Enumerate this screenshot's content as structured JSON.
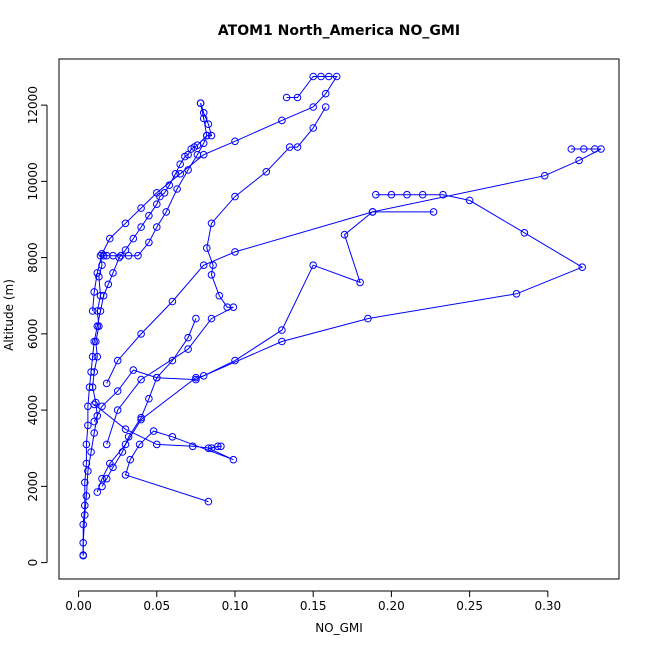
{
  "chart_data": {
    "type": "line",
    "title": "ATOM1 North_America NO_GMI",
    "xlabel": "NO_GMI",
    "ylabel": "Altitude (m)",
    "xlim": [
      -0.0125,
      0.3455
    ],
    "ylim": [
      -430,
      13210
    ],
    "x_ticks": [
      0.0,
      0.05,
      0.1,
      0.15,
      0.2,
      0.25,
      0.3
    ],
    "x_tick_labels": [
      "0.00",
      "0.05",
      "0.10",
      "0.15",
      "0.20",
      "0.25",
      "0.30"
    ],
    "y_ticks": [
      0,
      2000,
      4000,
      6000,
      8000,
      10000,
      12000
    ],
    "y_tick_labels": [
      "0",
      "2000",
      "4000",
      "6000",
      "8000",
      "10000",
      "12000"
    ],
    "grid": false,
    "color": "#0000ff",
    "marker": "open-circle",
    "series": [
      {
        "x": [
          0.003,
          0.003,
          0.004,
          0.005,
          0.006,
          0.008,
          0.01,
          0.012,
          0.011,
          0.009,
          0.01,
          0.012,
          0.011,
          0.013,
          0.012,
          0.014,
          0.013,
          0.015,
          0.014,
          0.016,
          0.018,
          0.022,
          0.027,
          0.032,
          0.038,
          0.045,
          0.05,
          0.056,
          0.063,
          0.07,
          0.076,
          0.08,
          0.082,
          0.085,
          0.083,
          0.08,
          0.078
        ],
        "y": [
          180,
          520,
          1250,
          1750,
          2400,
          2900,
          3400,
          3850,
          4200,
          4600,
          5000,
          5400,
          5800,
          6200,
          6600,
          7000,
          7500,
          7800,
          8050,
          8050,
          8050,
          8050,
          8050,
          8050,
          8050,
          8400,
          8800,
          9200,
          9800,
          10300,
          10700,
          11000,
          11200,
          11200,
          11500,
          11800,
          12050
        ]
      },
      {
        "x": [
          0.078,
          0.08,
          0.082,
          0.076,
          0.074,
          0.072,
          0.07,
          0.068,
          0.065,
          0.062,
          0.058,
          0.055,
          0.052,
          0.05,
          0.045,
          0.04,
          0.035,
          0.03,
          0.026,
          0.022,
          0.019,
          0.016,
          0.014,
          0.012,
          0.01,
          0.009,
          0.008,
          0.007,
          0.006,
          0.006,
          0.005,
          0.005,
          0.004,
          0.004,
          0.003,
          0.003
        ],
        "y": [
          12050,
          11650,
          11200,
          10950,
          10900,
          10850,
          10700,
          10650,
          10450,
          10200,
          9900,
          9700,
          9600,
          9400,
          9100,
          8800,
          8500,
          8200,
          8000,
          7600,
          7300,
          7000,
          6600,
          6200,
          5800,
          5400,
          5000,
          4600,
          4100,
          3600,
          3100,
          2600,
          2100,
          1500,
          1000,
          200
        ]
      },
      {
        "x": [
          0.133,
          0.14,
          0.15,
          0.155,
          0.16,
          0.165,
          0.158,
          0.15,
          0.13,
          0.1,
          0.08,
          0.065,
          0.05,
          0.04,
          0.03,
          0.02,
          0.015,
          0.012,
          0.01,
          0.009
        ],
        "y": [
          12200,
          12200,
          12750,
          12750,
          12750,
          12750,
          12300,
          11950,
          11600,
          11050,
          10700,
          10200,
          9700,
          9300,
          8900,
          8500,
          8100,
          7600,
          7100,
          6600
        ]
      },
      {
        "x": [
          0.158,
          0.15,
          0.14,
          0.135,
          0.12,
          0.1,
          0.085,
          0.082,
          0.086,
          0.085,
          0.09,
          0.095,
          0.099,
          0.085,
          0.07,
          0.04,
          0.025,
          0.018
        ],
        "y": [
          11950,
          11400,
          10900,
          10900,
          10250,
          9600,
          8900,
          8250,
          7800,
          7550,
          7000,
          6700,
          6700,
          6400,
          5600,
          4800,
          4000,
          3100
        ]
      },
      {
        "x": [
          0.19,
          0.2,
          0.21,
          0.22,
          0.233,
          0.25,
          0.285,
          0.322,
          0.28,
          0.185,
          0.13,
          0.08,
          0.075,
          0.04,
          0.03,
          0.02,
          0.015,
          0.012
        ],
        "y": [
          9650,
          9650,
          9650,
          9650,
          9650,
          9500,
          8650,
          7750,
          7050,
          6400,
          5800,
          4900,
          4850,
          3750,
          3100,
          2600,
          2200,
          1850
        ]
      },
      {
        "x": [
          0.315,
          0.323,
          0.33,
          0.334,
          0.32,
          0.298,
          0.188,
          0.1,
          0.08,
          0.06,
          0.04,
          0.025,
          0.018
        ],
        "y": [
          10850,
          10850,
          10850,
          10850,
          10550,
          10150,
          9200,
          8150,
          7800,
          6850,
          6000,
          5300,
          4700
        ]
      },
      {
        "x": [
          0.227,
          0.188,
          0.17,
          0.18,
          0.15,
          0.13,
          0.1,
          0.075,
          0.05,
          0.035,
          0.025,
          0.015,
          0.01
        ],
        "y": [
          9200,
          9200,
          8600,
          7350,
          7800,
          6100,
          5300,
          4800,
          4850,
          5050,
          4500,
          4100,
          3700
        ]
      },
      {
        "x": [
          0.075,
          0.07,
          0.06,
          0.05,
          0.045,
          0.04,
          0.032,
          0.028,
          0.022,
          0.018,
          0.015
        ],
        "y": [
          6400,
          5900,
          5300,
          4850,
          4300,
          3800,
          3300,
          2900,
          2500,
          2200,
          2000
        ]
      },
      {
        "x": [
          0.01,
          0.03,
          0.05,
          0.073,
          0.085,
          0.089,
          0.091,
          0.083,
          0.099,
          0.06,
          0.048,
          0.039,
          0.033,
          0.03,
          0.083
        ],
        "y": [
          4150,
          3500,
          3100,
          3050,
          3000,
          3050,
          3050,
          3000,
          2700,
          3300,
          3450,
          3100,
          2700,
          2300,
          1600
        ]
      }
    ]
  }
}
